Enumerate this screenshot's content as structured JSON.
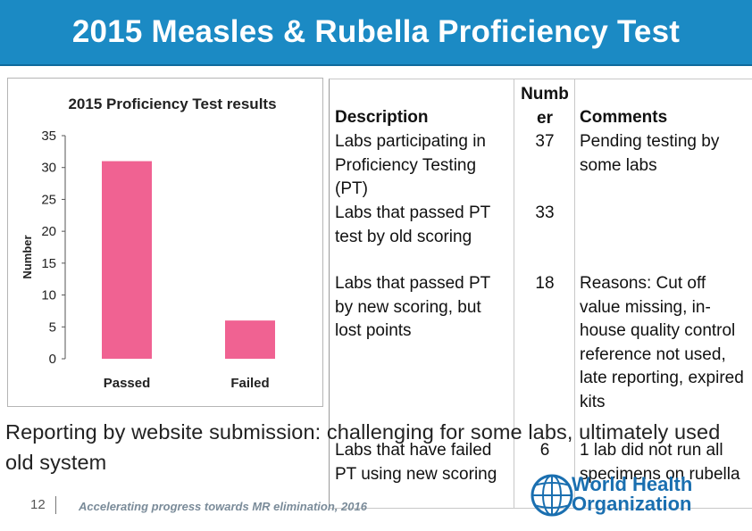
{
  "slide": {
    "title": "2015 Measles & Rubella Proficiency Test",
    "reporting_text": "Reporting by website submission:  challenging for some labs, ultimately used old system",
    "page_number": "12",
    "footer": "Accelerating progress towards MR elimination, 2016",
    "who_logo_text": "World Health Organization"
  },
  "table": {
    "headers": [
      "Description",
      "Number",
      "Comments"
    ],
    "rows": [
      {
        "description": "Labs participating in Proficiency Testing (PT)",
        "number": "37",
        "comments": "Pending testing by some labs"
      },
      {
        "description": "Labs that passed PT test by old scoring",
        "number": "33",
        "comments": ""
      },
      {
        "description": "Labs that passed PT by new scoring, but lost points",
        "number": "18",
        "comments": "Reasons: Cut off value missing, in-house quality control reference not used, late reporting, expired kits"
      },
      {
        "description": "Labs that have failed PT using new scoring",
        "number": "6",
        "comments": "1 lab did not run all specimens on rubella"
      }
    ]
  },
  "chart_data": {
    "type": "bar",
    "title": "2015 Proficiency Test results",
    "xlabel": "",
    "ylabel": "Number",
    "categories": [
      "Passed",
      "Failed"
    ],
    "values": [
      31,
      6
    ],
    "ylim": [
      0,
      35
    ],
    "yticks": [
      0,
      5,
      10,
      15,
      20,
      25,
      30,
      35
    ],
    "grid": false,
    "bar_color": "#f06292"
  },
  "colors": {
    "title_bar": "#1b8ac4",
    "who_blue": "#1a6fb0"
  }
}
